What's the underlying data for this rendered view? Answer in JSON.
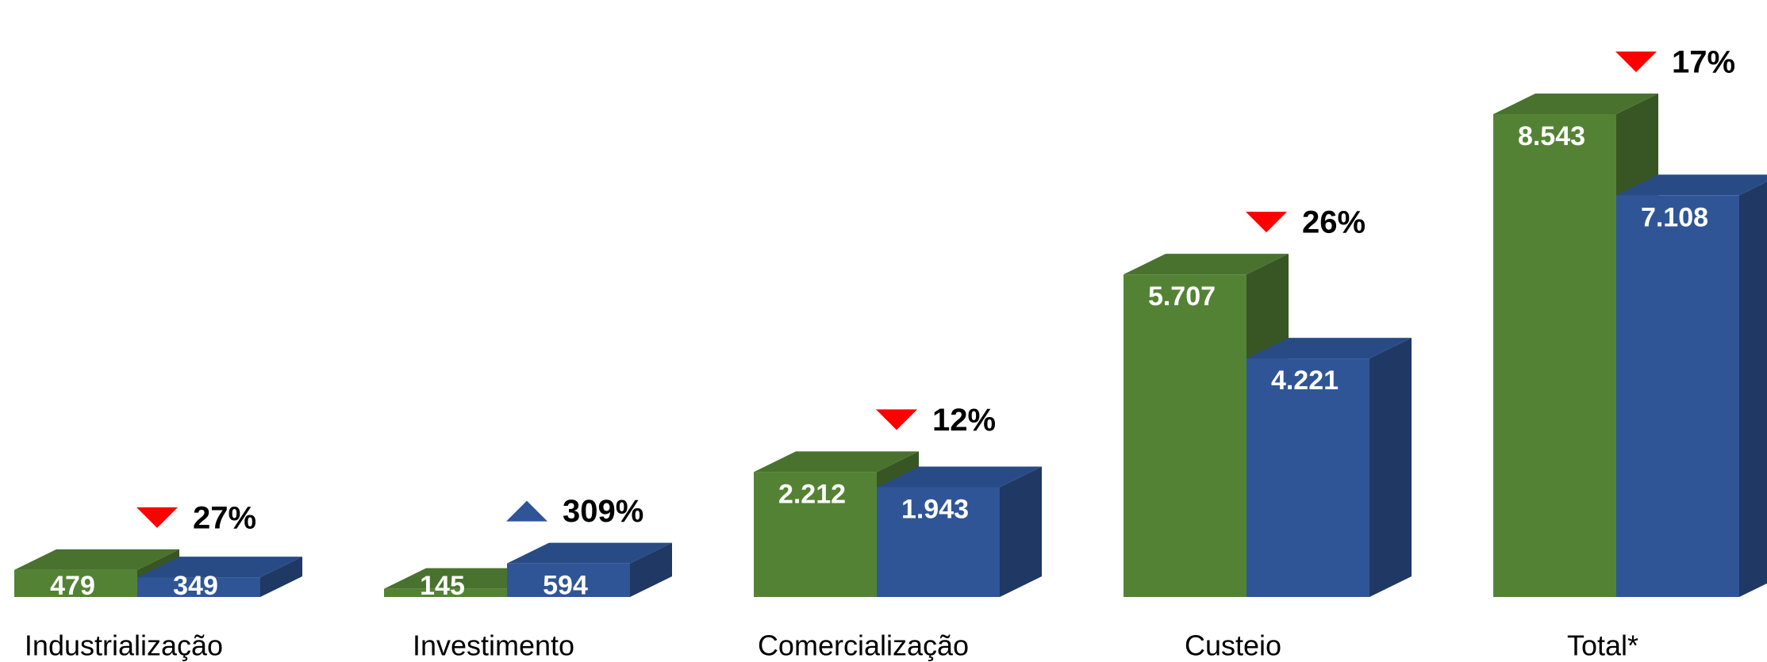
{
  "chart_data": {
    "type": "bar3d",
    "categories": [
      "Industrialização",
      "Investimento",
      "Comercialização",
      "Custeio",
      "Total*"
    ],
    "series": [
      {
        "color": "#548235",
        "values": [
          479,
          145,
          2212,
          5707,
          8543
        ],
        "value_labels": [
          "479",
          "145",
          "2.212",
          "5.707",
          "8.543"
        ]
      },
      {
        "color": "#2f5597",
        "values": [
          349,
          594,
          1943,
          4221,
          7108
        ],
        "value_labels": [
          "349",
          "594",
          "1.943",
          "4.221",
          "7.108"
        ]
      }
    ],
    "annotations": [
      {
        "label": "27%",
        "direction": "down"
      },
      {
        "label": "309%",
        "direction": "up"
      },
      {
        "label": "12%",
        "direction": "down"
      },
      {
        "label": "26%",
        "direction": "down"
      },
      {
        "label": "17%",
        "direction": "down"
      }
    ],
    "arrow_colors": {
      "down": "#ff0000",
      "up": "#2f5597"
    }
  }
}
